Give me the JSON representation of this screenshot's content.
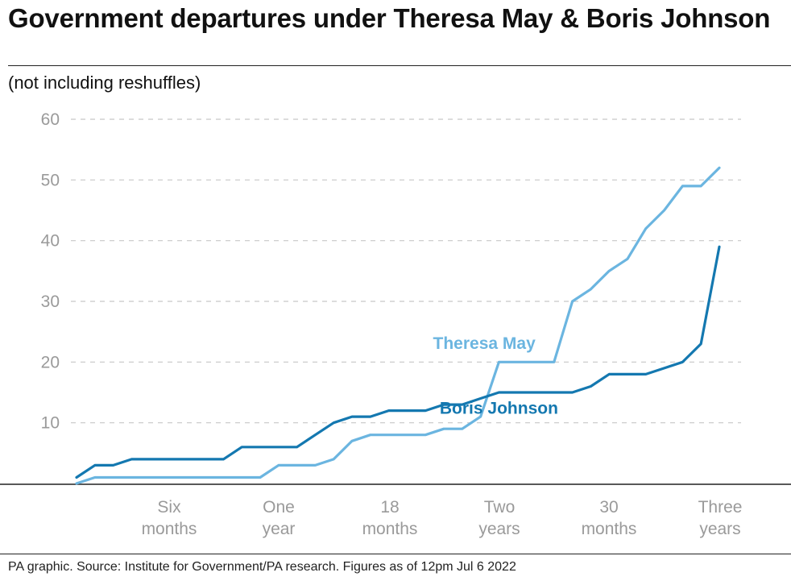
{
  "title": "Government departures under Theresa May & Boris Johnson",
  "subtitle": "(not including reshuffles)",
  "footer": "PA graphic. Source: Institute for Government/PA research. Figures as of 12pm Jul 6 2022",
  "colors": {
    "may": "#6bb5e0",
    "johnson": "#1478b0",
    "grid": "#c8c8c8",
    "axis": "#222222",
    "tick": "#9a9a9a"
  },
  "chart_data": {
    "type": "line",
    "title": "Government departures under Theresa May & Boris Johnson",
    "xlabel": "",
    "ylabel": "",
    "xlim": [
      0,
      36
    ],
    "ylim": [
      0,
      60
    ],
    "y_ticks": [
      10,
      20,
      30,
      40,
      50,
      60
    ],
    "y_tick_labels": [
      "10",
      "20",
      "30",
      "40",
      "50",
      "60"
    ],
    "x_ticks": [
      {
        "month": 6,
        "lines": [
          "Six",
          "months"
        ]
      },
      {
        "month": 12,
        "lines": [
          "One",
          "year"
        ]
      },
      {
        "month": 18,
        "lines": [
          "18",
          "months"
        ]
      },
      {
        "month": 24,
        "lines": [
          "Two",
          "years"
        ]
      },
      {
        "month": 30,
        "lines": [
          "30",
          "months"
        ]
      },
      {
        "month": 36,
        "lines": [
          "Three",
          "years"
        ]
      }
    ],
    "series": [
      {
        "name": "Theresa May",
        "color": "#6bb5e0",
        "points": [
          [
            0,
            0
          ],
          [
            1,
            1
          ],
          [
            2,
            1
          ],
          [
            3,
            1
          ],
          [
            4,
            1
          ],
          [
            5,
            1
          ],
          [
            6,
            1
          ],
          [
            7,
            1
          ],
          [
            8,
            1
          ],
          [
            9,
            1
          ],
          [
            10,
            1
          ],
          [
            11,
            3
          ],
          [
            12,
            3
          ],
          [
            13,
            3
          ],
          [
            14,
            4
          ],
          [
            15,
            7
          ],
          [
            16,
            8
          ],
          [
            17,
            8
          ],
          [
            18,
            8
          ],
          [
            19,
            8
          ],
          [
            20,
            9
          ],
          [
            21,
            9
          ],
          [
            22,
            11
          ],
          [
            23,
            20
          ],
          [
            24,
            20
          ],
          [
            25,
            20
          ],
          [
            26,
            20
          ],
          [
            27,
            30
          ],
          [
            28,
            32
          ],
          [
            29,
            35
          ],
          [
            30,
            37
          ],
          [
            31,
            42
          ],
          [
            32,
            45
          ],
          [
            33,
            49
          ],
          [
            34,
            49
          ],
          [
            35,
            52
          ]
        ]
      },
      {
        "name": "Boris Johnson",
        "color": "#1478b0",
        "points": [
          [
            0,
            1
          ],
          [
            1,
            3
          ],
          [
            2,
            3
          ],
          [
            3,
            4
          ],
          [
            4,
            4
          ],
          [
            5,
            4
          ],
          [
            6,
            4
          ],
          [
            7,
            4
          ],
          [
            8,
            4
          ],
          [
            9,
            6
          ],
          [
            10,
            6
          ],
          [
            11,
            6
          ],
          [
            12,
            6
          ],
          [
            13,
            8
          ],
          [
            14,
            10
          ],
          [
            15,
            11
          ],
          [
            16,
            11
          ],
          [
            17,
            12
          ],
          [
            18,
            12
          ],
          [
            19,
            12
          ],
          [
            20,
            13
          ],
          [
            21,
            13
          ],
          [
            22,
            14
          ],
          [
            23,
            15
          ],
          [
            24,
            15
          ],
          [
            25,
            15
          ],
          [
            26,
            15
          ],
          [
            27,
            15
          ],
          [
            28,
            16
          ],
          [
            29,
            18
          ],
          [
            30,
            18
          ],
          [
            31,
            18
          ],
          [
            32,
            19
          ],
          [
            33,
            20
          ],
          [
            34,
            23
          ],
          [
            35,
            39
          ]
        ]
      }
    ],
    "annotations": [
      {
        "text": "Theresa May",
        "series": "Theresa May",
        "at": [
          22.2,
          22.2
        ]
      },
      {
        "text": "Boris Johnson",
        "series": "Boris Johnson",
        "at": [
          23.0,
          11.5
        ]
      }
    ],
    "grid": true,
    "legend": "inline labels"
  }
}
